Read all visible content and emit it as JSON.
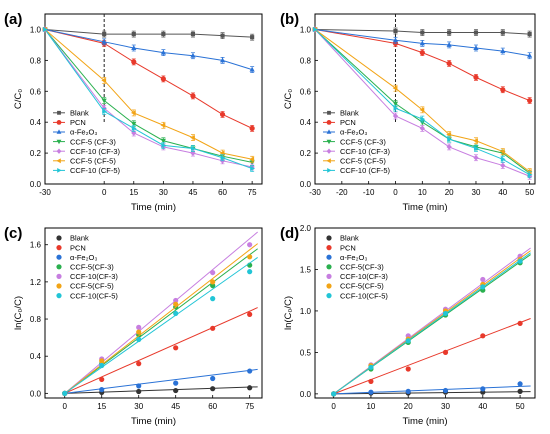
{
  "chart_data": [
    {
      "type": "line",
      "panel_label": "(a)",
      "xlabel": "Time (min)",
      "ylabel": "C/C₀",
      "xlim": [
        -30,
        80
      ],
      "ylim": [
        0,
        1.1
      ],
      "xticks": [
        -30,
        0,
        15,
        30,
        45,
        60,
        75
      ],
      "yticks": [
        0.0,
        0.2,
        0.4,
        0.6,
        0.8,
        1.0
      ],
      "x": [
        -30,
        0,
        15,
        30,
        45,
        60,
        75
      ],
      "light_on_marker_x": 0,
      "legend_position": "bottom-left",
      "series": [
        {
          "name": "Blank",
          "color": "#555555",
          "marker": "square",
          "values": [
            1.0,
            0.97,
            0.97,
            0.97,
            0.97,
            0.96,
            0.95
          ]
        },
        {
          "name": "PCN",
          "color": "#e8392b",
          "marker": "circle",
          "values": [
            1.0,
            0.91,
            0.79,
            0.68,
            0.57,
            0.45,
            0.36
          ]
        },
        {
          "name": "α-Fe₂O₃",
          "color": "#2a72d6",
          "marker": "triangle-up",
          "values": [
            1.0,
            0.92,
            0.88,
            0.85,
            0.83,
            0.8,
            0.74
          ]
        },
        {
          "name": "CCF-5 (CF-3)",
          "color": "#2ab04f",
          "marker": "triangle-down",
          "values": [
            1.0,
            0.54,
            0.39,
            0.28,
            0.23,
            0.18,
            0.14
          ]
        },
        {
          "name": "CCF-10 (CF-3)",
          "color": "#c77ee0",
          "marker": "diamond",
          "values": [
            1.0,
            0.49,
            0.33,
            0.24,
            0.2,
            0.15,
            0.11
          ]
        },
        {
          "name": "CCF-5 (CF-5)",
          "color": "#f2a416",
          "marker": "triangle-left",
          "values": [
            1.0,
            0.67,
            0.46,
            0.38,
            0.3,
            0.2,
            0.16
          ]
        },
        {
          "name": "CCF-10 (CF-5)",
          "color": "#22c5d6",
          "marker": "triangle-right",
          "values": [
            1.0,
            0.47,
            0.36,
            0.25,
            0.23,
            0.17,
            0.1
          ]
        }
      ]
    },
    {
      "type": "line",
      "panel_label": "(b)",
      "xlabel": "Time (min)",
      "ylabel": "C/C₀",
      "xlim": [
        -30,
        52
      ],
      "ylim": [
        0,
        1.1
      ],
      "xticks": [
        -30,
        -20,
        -10,
        0,
        10,
        20,
        30,
        40,
        50
      ],
      "yticks": [
        0.0,
        0.2,
        0.4,
        0.6,
        0.8,
        1.0
      ],
      "x": [
        -30,
        0,
        10,
        20,
        30,
        40,
        50
      ],
      "light_on_marker_x": 0,
      "legend_position": "bottom-left",
      "series": [
        {
          "name": "Blank",
          "color": "#555555",
          "marker": "square",
          "values": [
            1.0,
            0.99,
            0.98,
            0.98,
            0.98,
            0.98,
            0.97
          ]
        },
        {
          "name": "PCN",
          "color": "#e8392b",
          "marker": "circle",
          "values": [
            1.0,
            0.91,
            0.85,
            0.78,
            0.69,
            0.61,
            0.54
          ]
        },
        {
          "name": "α-Fe₂O₃",
          "color": "#2a72d6",
          "marker": "triangle-up",
          "values": [
            1.0,
            0.93,
            0.91,
            0.9,
            0.88,
            0.86,
            0.83
          ]
        },
        {
          "name": "CCF-5 (CF-3)",
          "color": "#2ab04f",
          "marker": "triangle-down",
          "values": [
            1.0,
            0.52,
            0.4,
            0.29,
            0.24,
            0.2,
            0.07
          ]
        },
        {
          "name": "CCF-10 (CF-3)",
          "color": "#c77ee0",
          "marker": "diamond",
          "values": [
            1.0,
            0.44,
            0.36,
            0.24,
            0.17,
            0.12,
            0.05
          ]
        },
        {
          "name": "CCF-5 (CF-5)",
          "color": "#f2a416",
          "marker": "triangle-left",
          "values": [
            1.0,
            0.62,
            0.48,
            0.32,
            0.28,
            0.21,
            0.08
          ]
        },
        {
          "name": "CCF-10 (CF-5)",
          "color": "#22c5d6",
          "marker": "triangle-right",
          "values": [
            1.0,
            0.49,
            0.42,
            0.29,
            0.23,
            0.16,
            0.06
          ]
        }
      ]
    },
    {
      "type": "scatter",
      "panel_label": "(c)",
      "xlabel": "Time (min)",
      "ylabel": "ln(C₀/C)",
      "xlim": [
        -8,
        80
      ],
      "ylim": [
        -0.05,
        1.78
      ],
      "xticks": [
        0,
        15,
        30,
        45,
        60,
        75
      ],
      "yticks": [
        0.0,
        0.4,
        0.8,
        1.2,
        1.6
      ],
      "x": [
        0,
        15,
        30,
        45,
        60,
        75
      ],
      "legend_position": "top-left",
      "series": [
        {
          "name": "Blank",
          "color": "#333333",
          "values": [
            0,
            0.01,
            0.02,
            0.03,
            0.05,
            0.06
          ],
          "fit_slope": 0.0009
        },
        {
          "name": "PCN",
          "color": "#e8392b",
          "values": [
            0,
            0.15,
            0.32,
            0.49,
            0.7,
            0.85
          ],
          "fit_slope": 0.0118
        },
        {
          "name": "α-Fe₂O₃",
          "color": "#2a72d6",
          "values": [
            0,
            0.04,
            0.08,
            0.11,
            0.16,
            0.24
          ],
          "fit_slope": 0.0033
        },
        {
          "name": "CCF-5(CF-3)",
          "color": "#2ab04f",
          "values": [
            0,
            0.32,
            0.63,
            0.93,
            1.16,
            1.38
          ],
          "fit_slope": 0.0199
        },
        {
          "name": "CCF-10(CF-3)",
          "color": "#c77ee0",
          "values": [
            0,
            0.37,
            0.71,
            1.0,
            1.3,
            1.6
          ],
          "fit_slope": 0.0222
        },
        {
          "name": "CCF-5(CF-5)",
          "color": "#f2a416",
          "values": [
            0,
            0.35,
            0.66,
            0.96,
            1.2,
            1.47
          ],
          "fit_slope": 0.0206
        },
        {
          "name": "CCF-10(CF-5)",
          "color": "#22c5d6",
          "values": [
            0,
            0.3,
            0.58,
            0.86,
            1.02,
            1.31
          ],
          "fit_slope": 0.0187
        }
      ]
    },
    {
      "type": "scatter",
      "panel_label": "(d)",
      "xlabel": "Time (min)",
      "ylabel": "ln(C₀/C)",
      "xlim": [
        -5,
        54
      ],
      "ylim": [
        -0.05,
        2.0
      ],
      "xticks": [
        0,
        10,
        20,
        30,
        40,
        50
      ],
      "yticks": [
        0.0,
        0.5,
        1.0,
        1.5,
        2.0
      ],
      "x": [
        0,
        10,
        20,
        30,
        40,
        50
      ],
      "legend_position": "top-left",
      "series": [
        {
          "name": "Blank",
          "color": "#333333",
          "values": [
            0,
            0.01,
            0.01,
            0.02,
            0.02,
            0.03
          ],
          "fit_slope": 0.0005
        },
        {
          "name": "PCN",
          "color": "#e8392b",
          "values": [
            0,
            0.15,
            0.3,
            0.5,
            0.7,
            0.85
          ],
          "fit_slope": 0.0172
        },
        {
          "name": "α-Fe₂O₃",
          "color": "#2a72d6",
          "values": [
            0,
            0.02,
            0.03,
            0.04,
            0.06,
            0.12
          ],
          "fit_slope": 0.0018
        },
        {
          "name": "CCF-5(CF-3)",
          "color": "#2ab04f",
          "values": [
            0,
            0.3,
            0.62,
            0.95,
            1.25,
            1.58
          ],
          "fit_slope": 0.0318
        },
        {
          "name": "CCF-10(CF-3)",
          "color": "#c77ee0",
          "values": [
            0,
            0.35,
            0.7,
            1.02,
            1.38,
            1.66
          ],
          "fit_slope": 0.0333
        },
        {
          "name": "CCF-5(CF-5)",
          "color": "#f2a416",
          "values": [
            0,
            0.34,
            0.66,
            1.0,
            1.32,
            1.62
          ],
          "fit_slope": 0.0327
        },
        {
          "name": "CCF-10(CF-5)",
          "color": "#22c5d6",
          "values": [
            0,
            0.32,
            0.64,
            0.97,
            1.29,
            1.6
          ],
          "fit_slope": 0.0322
        }
      ]
    }
  ]
}
